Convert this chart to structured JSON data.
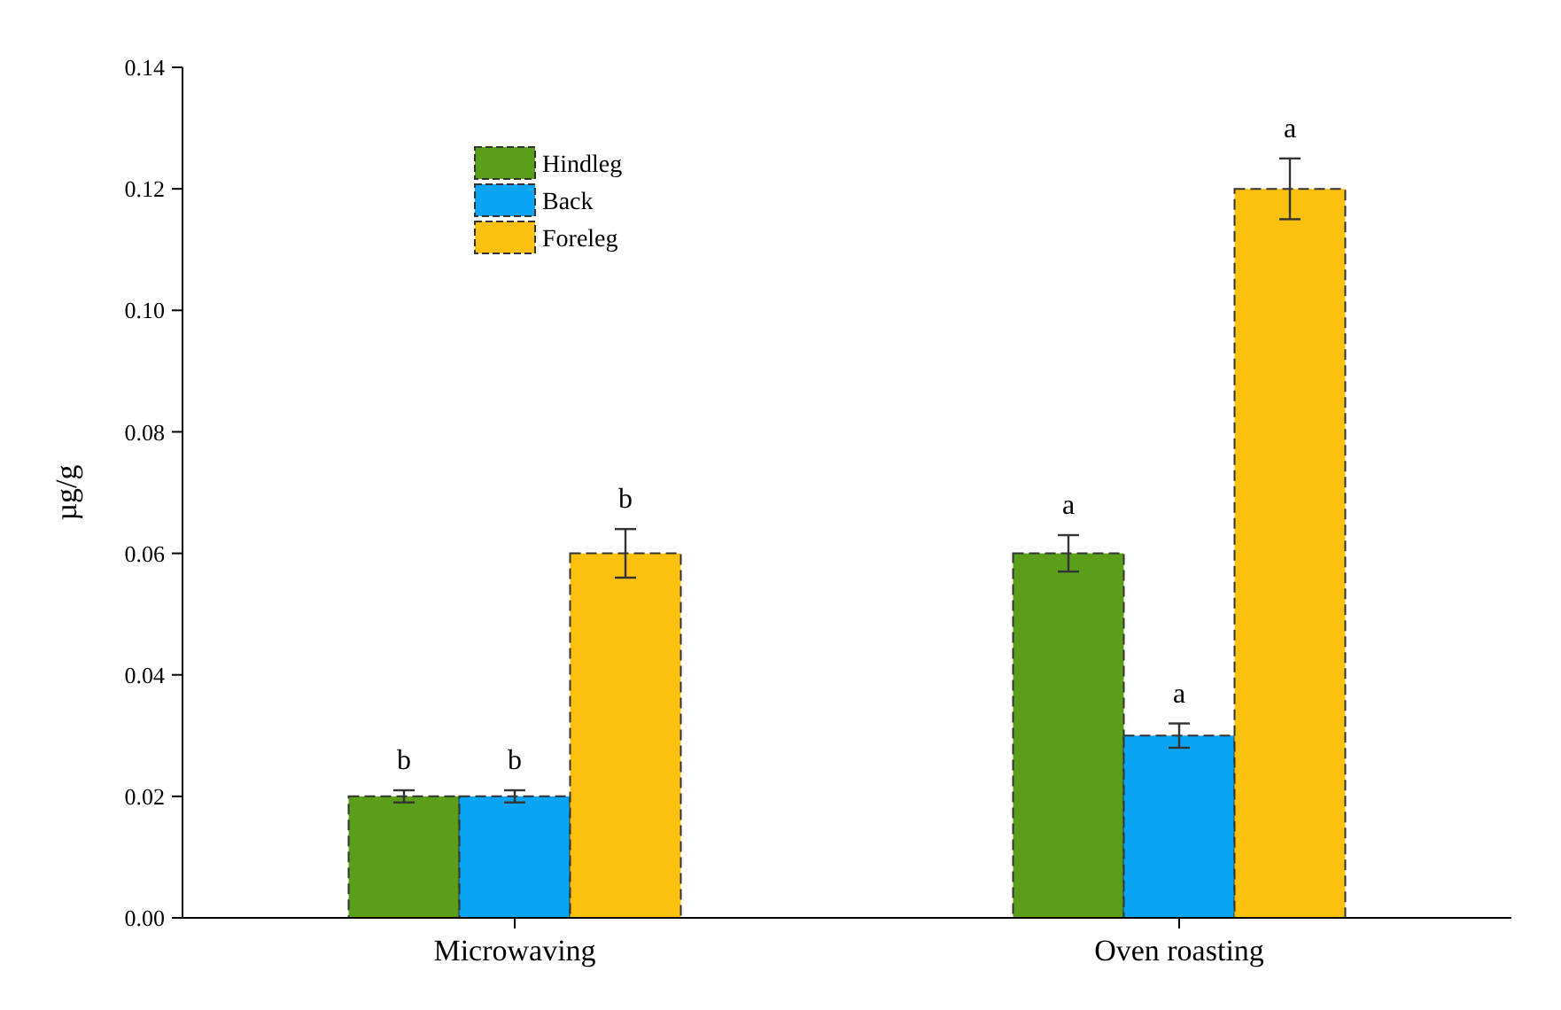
{
  "chart_data": {
    "type": "bar",
    "ylabel": "µg/g",
    "categories": [
      "Microwaving",
      "Oven roasting"
    ],
    "series": [
      {
        "name": "Hindleg",
        "color": "#5a9e1a",
        "values": [
          0.02,
          0.06
        ],
        "errors": [
          0.001,
          0.003
        ]
      },
      {
        "name": "Back",
        "color": "#0aa4f5",
        "values": [
          0.02,
          0.03
        ],
        "errors": [
          0.001,
          0.002
        ]
      },
      {
        "name": "Foreleg",
        "color": "#fcc10f",
        "values": [
          0.06,
          0.12
        ],
        "errors": [
          0.004,
          0.005
        ]
      }
    ],
    "ylim": [
      0,
      0.14
    ],
    "yticks": [
      {
        "value": 0,
        "label": "0.00"
      },
      {
        "value": 0.02,
        "label": "0.02"
      },
      {
        "value": 0.04,
        "label": "0.04"
      },
      {
        "value": 0.06,
        "label": "0.06"
      },
      {
        "value": 0.08,
        "label": "0.08"
      },
      {
        "value": 0.1,
        "label": "0.10"
      },
      {
        "value": 0.12,
        "label": "0.12"
      },
      {
        "value": 0.14,
        "label": "0.14"
      }
    ],
    "annotations": [
      "b",
      "b",
      "b",
      "a",
      "a",
      "a"
    ],
    "legend": "top left",
    "grid": false
  }
}
